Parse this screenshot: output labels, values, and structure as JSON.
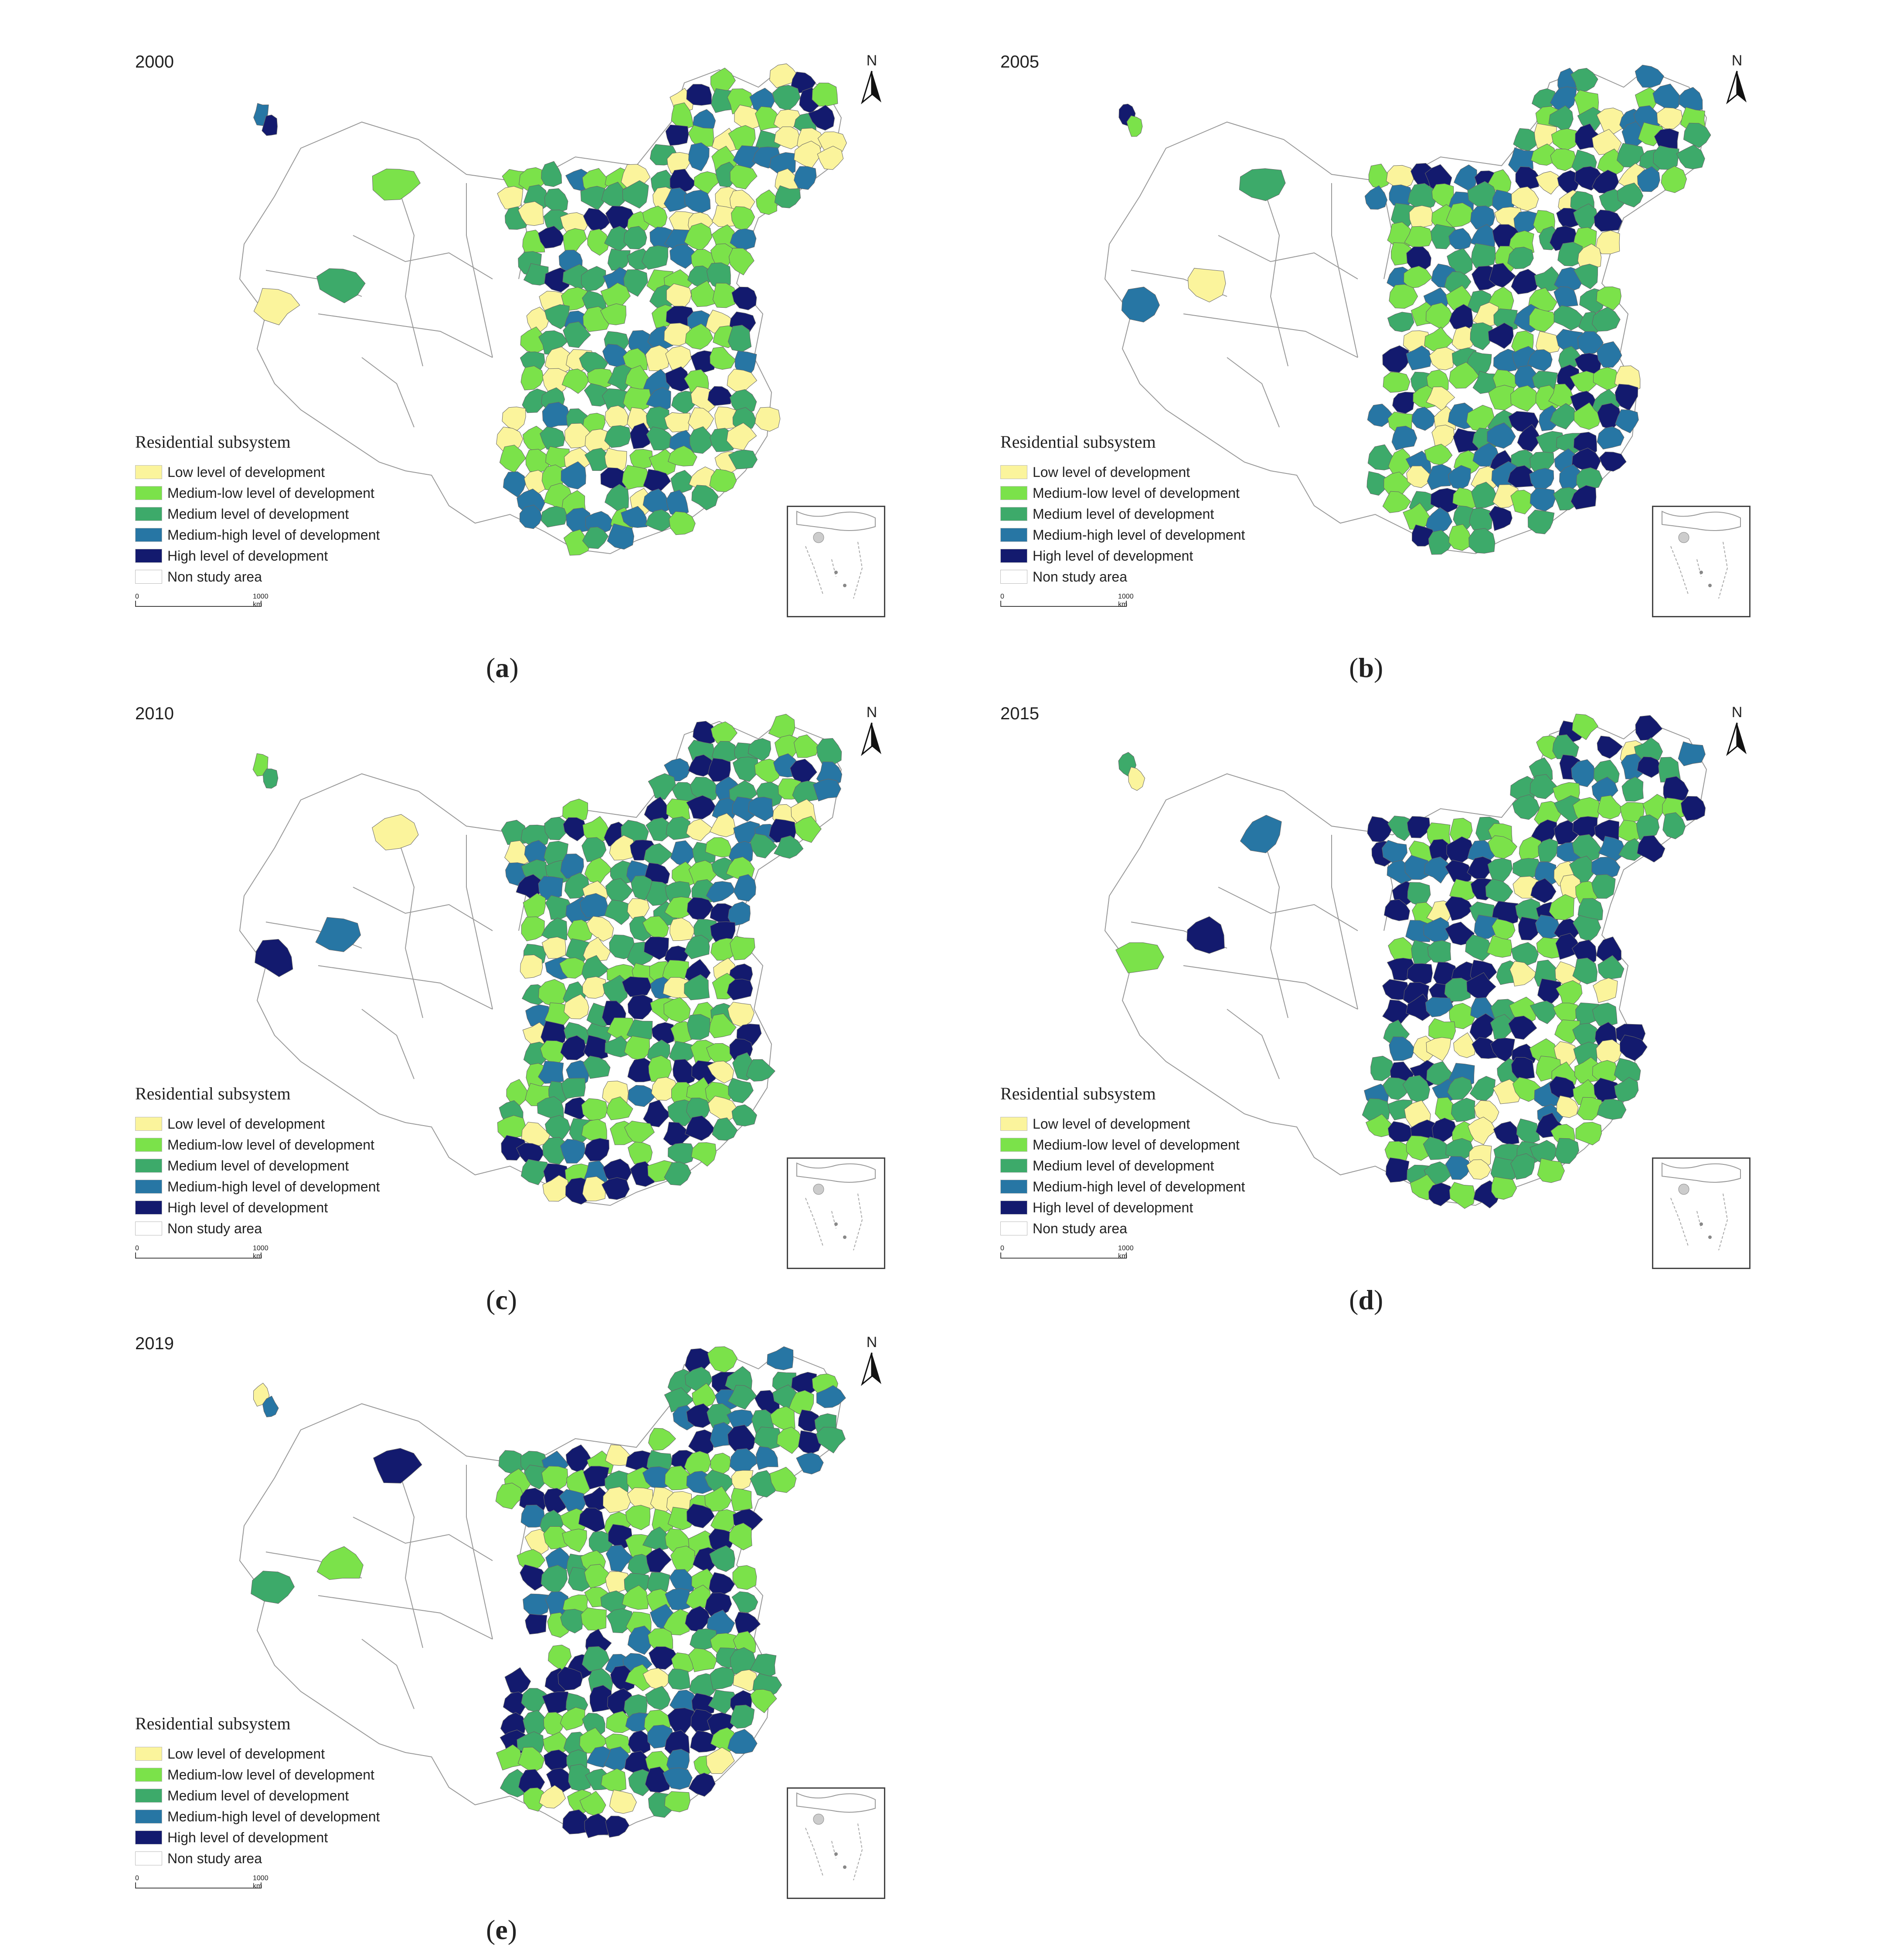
{
  "legend": {
    "title": "Residential subsystem",
    "classes": [
      {
        "label": "Low level of development",
        "color": "#fbf49c"
      },
      {
        "label": "Medium-low level of development",
        "color": "#7be24a"
      },
      {
        "label": "Medium level of development",
        "color": "#3daa6a"
      },
      {
        "label": "Medium-high level of development",
        "color": "#2776a4"
      },
      {
        "label": "High level of development",
        "color": "#131a6e"
      },
      {
        "label": "Non study area",
        "color": "#ffffff"
      }
    ]
  },
  "north_label": "N",
  "scale": {
    "zero": "0",
    "distance": "1000 km"
  },
  "panels": [
    {
      "year": "2000",
      "letter": "a"
    },
    {
      "year": "2005",
      "letter": "b"
    },
    {
      "year": "2010",
      "letter": "c"
    },
    {
      "year": "2015",
      "letter": "d"
    },
    {
      "year": "2019",
      "letter": "e"
    }
  ]
}
